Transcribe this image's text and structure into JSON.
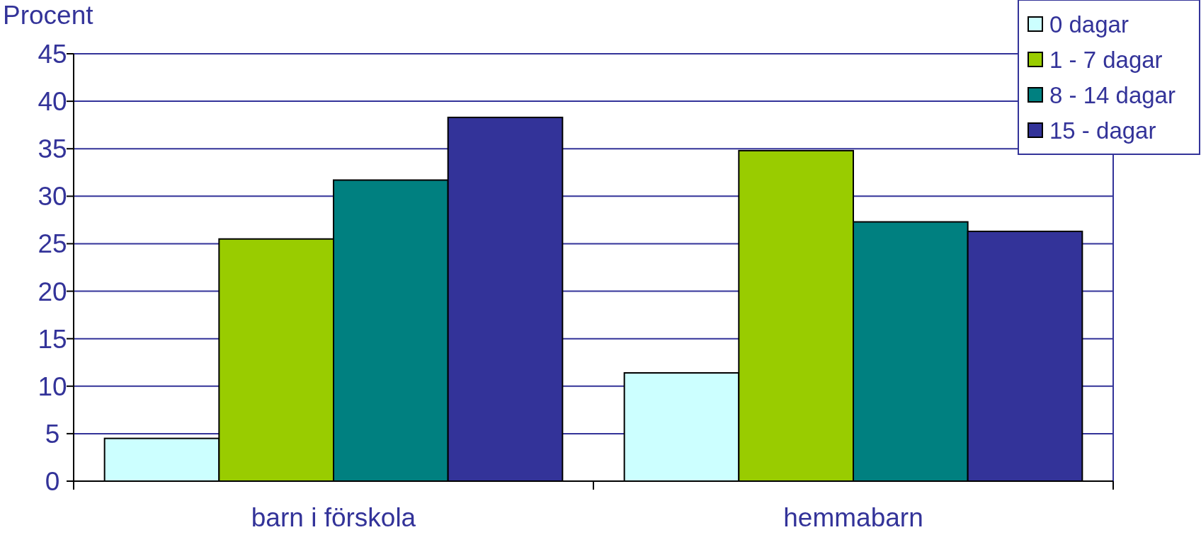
{
  "chart_data": {
    "type": "bar",
    "ylabel": "Procent",
    "categories": [
      "barn i förskola",
      "hemmabarn"
    ],
    "series": [
      {
        "name": "0 dagar",
        "color": "#ccffff",
        "values": [
          4.5,
          11.4
        ]
      },
      {
        "name": "1 - 7 dagar",
        "color": "#99cc00",
        "values": [
          25.5,
          34.8
        ]
      },
      {
        "name": "8 - 14 dagar",
        "color": "#008080",
        "values": [
          31.7,
          27.3
        ]
      },
      {
        "name": "15 - dagar",
        "color": "#333399",
        "values": [
          38.3,
          26.3
        ]
      }
    ],
    "ylim": [
      0,
      45
    ],
    "yticks": [
      0,
      5,
      10,
      15,
      20,
      25,
      30,
      35,
      40,
      45
    ],
    "grid": "y",
    "legend": "top right"
  }
}
